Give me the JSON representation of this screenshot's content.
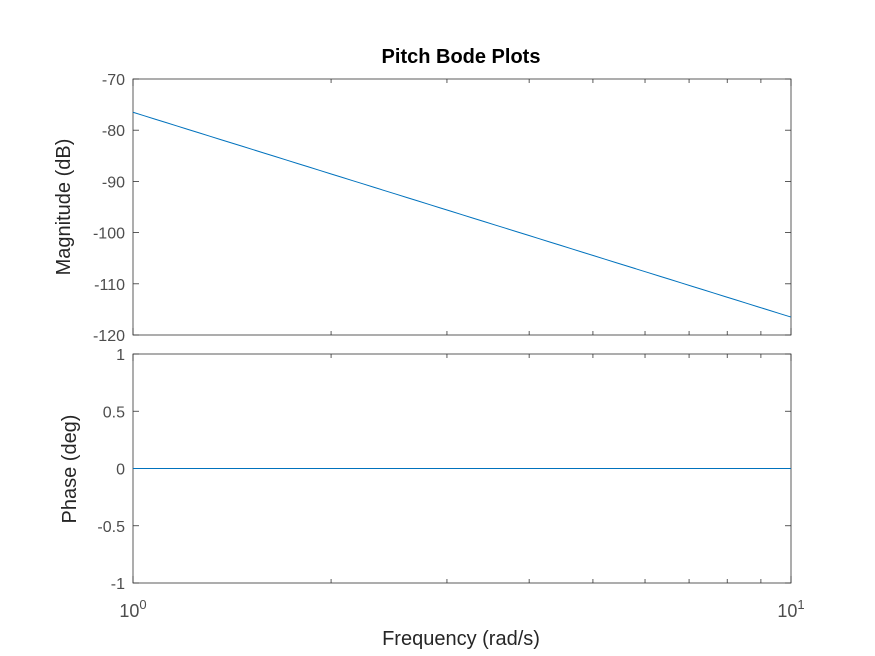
{
  "chart_data": [
    {
      "type": "line",
      "name": "magnitude",
      "title": "Pitch Bode Plots",
      "ylabel": "Magnitude (dB)",
      "xscale": "log",
      "xlim": [
        1,
        10
      ],
      "ylim": [
        -120,
        -70
      ],
      "yticks": [
        -70,
        -80,
        -90,
        -100,
        -110,
        -120
      ],
      "ytick_labels": [
        "-70",
        "-80",
        "-90",
        "-100",
        "-110",
        "-120"
      ],
      "grid": false,
      "series": [
        {
          "x": [
            1,
            10
          ],
          "y": [
            -76.5,
            -116.5
          ],
          "color": "#0072bd"
        }
      ]
    },
    {
      "type": "line",
      "name": "phase",
      "xlabel": "Frequency  (rad/s)",
      "ylabel": "Phase (deg)",
      "xscale": "log",
      "xlim": [
        1,
        10
      ],
      "ylim": [
        -1,
        1
      ],
      "yticks": [
        1,
        0.5,
        0,
        -0.5,
        -1
      ],
      "ytick_labels": [
        "1",
        "0.5",
        "0",
        "-0.5",
        "-1"
      ],
      "x_major_ticks": [
        1,
        10
      ],
      "x_major_tick_bases": [
        "10",
        "10"
      ],
      "x_major_tick_exponents": [
        "0",
        "1"
      ],
      "grid": false,
      "series": [
        {
          "x": [
            1,
            10
          ],
          "y": [
            0,
            0
          ],
          "color": "#0072bd"
        }
      ]
    }
  ]
}
